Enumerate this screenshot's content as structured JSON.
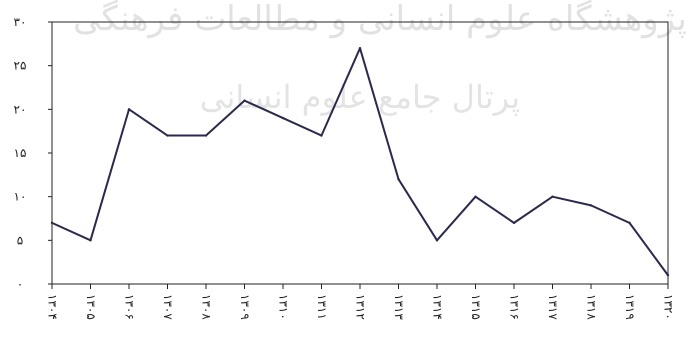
{
  "chart_data": {
    "type": "line",
    "title": "",
    "xlabel": "",
    "ylabel": "",
    "ylim": [
      0,
      30
    ],
    "y_ticks": [
      "۰",
      "۵",
      "۱۰",
      "۱۵",
      "۲۰",
      "۲۵",
      "۳۰"
    ],
    "grid": false,
    "legend": "none",
    "line_color": "#2b2a4c",
    "categories": [
      "۱۳۰۴",
      "۱۳۰۵",
      "۱۳۰۶",
      "۱۳۰۷",
      "۱۳۰۸",
      "۱۳۰۹",
      "۱۳۱۰",
      "۱۳۱۱",
      "۱۳۱۲",
      "۱۳۱۳",
      "۱۳۱۴",
      "۱۳۱۵",
      "۱۳۱۶",
      "۱۳۱۷",
      "۱۳۱۸",
      "۱۳۱۹",
      "۱۳۲۰"
    ],
    "series": [
      {
        "values": [
          7,
          5,
          20,
          17,
          17,
          21,
          19,
          17,
          27,
          12,
          5,
          10,
          7,
          10,
          9,
          7,
          1
        ]
      }
    ]
  },
  "watermark": {
    "line1": "پژوهشگاه علوم انسانی و مطالعات فرهنگی",
    "line2": "پرتال جامع علوم انسانی"
  }
}
